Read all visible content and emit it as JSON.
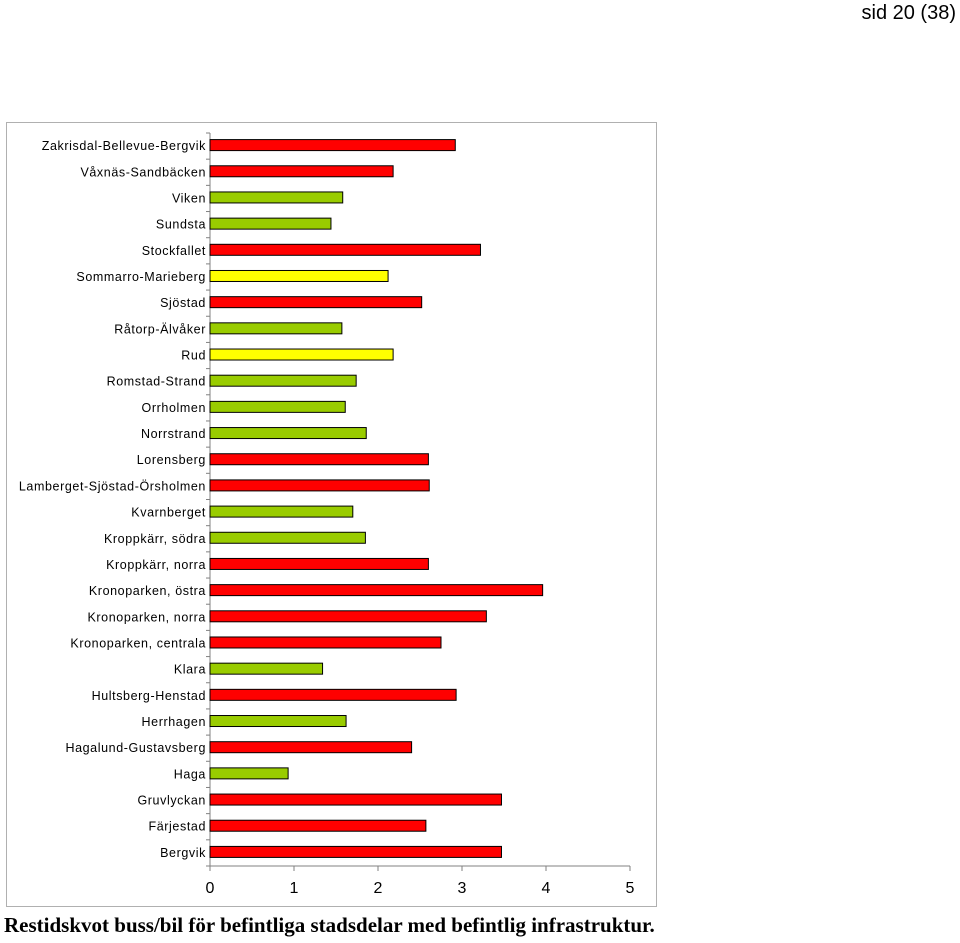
{
  "header": {
    "page_number": "sid 20 (38)"
  },
  "caption": "Restidskvot buss/bil för befintliga stadsdelar med befintlig infrastruktur.",
  "colors": {
    "red": "#ff0000",
    "green": "#99cc00",
    "yellow": "#ffff00",
    "border": "#000000"
  },
  "chart_data": {
    "type": "bar",
    "orientation": "horizontal",
    "title": "",
    "xlabel": "",
    "ylabel": "",
    "xlim": [
      0,
      5
    ],
    "xticks": [
      "0",
      "1",
      "2",
      "3",
      "4",
      "5"
    ],
    "grid": false,
    "categories": [
      "Zakrisdal-Bellevue-Bergvik",
      "Våxnäs-Sandbäcken",
      "Viken",
      "Sundsta",
      "Stockfallet",
      "Sommarro-Marieberg",
      "Sjöstad",
      "Råtorp-Älvåker",
      "Rud",
      "Romstad-Strand",
      "Orrholmen",
      "Norrstrand",
      "Lorensberg",
      "Lamberget-Sjöstad-Örsholmen",
      "Kvarnberget",
      "Kroppkärr, södra",
      "Kroppkärr, norra",
      "Kronoparken, östra",
      "Kronoparken, norra",
      "Kronoparken, centrala",
      "Klara",
      "Hultsberg-Henstad",
      "Herrhagen",
      "Hagalund-Gustavsberg",
      "Haga",
      "Gruvlyckan",
      "Färjestad",
      "Bergvik"
    ],
    "values": [
      2.92,
      2.18,
      1.58,
      1.44,
      3.22,
      2.12,
      2.52,
      1.57,
      2.18,
      1.74,
      1.61,
      1.86,
      2.6,
      2.61,
      1.7,
      1.85,
      2.6,
      3.96,
      3.29,
      2.75,
      1.34,
      2.93,
      1.62,
      2.4,
      0.93,
      3.47,
      2.57,
      3.47
    ],
    "bar_colors": [
      "red",
      "red",
      "green",
      "green",
      "red",
      "yellow",
      "red",
      "green",
      "yellow",
      "green",
      "green",
      "green",
      "red",
      "red",
      "green",
      "green",
      "red",
      "red",
      "red",
      "red",
      "green",
      "red",
      "green",
      "red",
      "green",
      "red",
      "red",
      "red"
    ]
  }
}
